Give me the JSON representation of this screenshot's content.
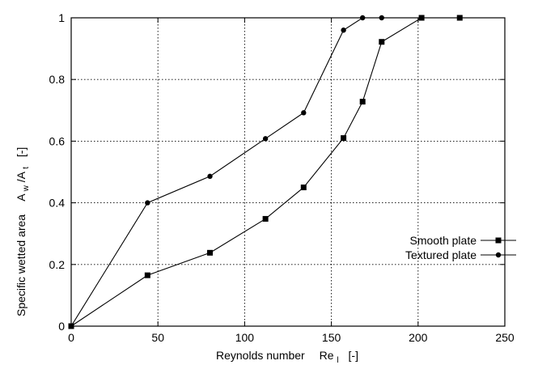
{
  "chart_data": {
    "type": "line",
    "xlabel": "Reynolds number",
    "xlabel_symbol": "Re",
    "xlabel_symbol_sub": "l",
    "xlabel_unit": "[-]",
    "ylabel": "Specific wetted area",
    "ylabel_symbol_parts": [
      "A",
      "w",
      "/A",
      "t"
    ],
    "ylabel_unit": "[-]",
    "xlim": [
      0,
      250
    ],
    "ylim": [
      0,
      1
    ],
    "xticks": [
      0,
      50,
      100,
      150,
      200,
      250
    ],
    "yticks": [
      0,
      0.2,
      0.4,
      0.6,
      0.8,
      1
    ],
    "xtick_labels": [
      "0",
      "50",
      "100",
      "150",
      "200",
      "250"
    ],
    "ytick_labels": [
      "0",
      "0.2",
      "0.4",
      "0.6",
      "0.8",
      "1"
    ],
    "grid": true,
    "legend_position": "bottom-right",
    "series": [
      {
        "name": "Smooth plate",
        "marker": "square",
        "x": [
          0,
          44,
          80,
          112,
          134,
          157,
          168,
          179,
          202,
          224
        ],
        "y": [
          0,
          0.165,
          0.238,
          0.348,
          0.45,
          0.61,
          0.728,
          0.922,
          1.0,
          1.0
        ]
      },
      {
        "name": "Textured plate",
        "marker": "circle",
        "x": [
          0,
          44,
          80,
          112,
          134,
          157,
          168,
          179
        ],
        "y": [
          0,
          0.4,
          0.486,
          0.608,
          0.692,
          0.96,
          1.0,
          1.0
        ]
      }
    ]
  }
}
